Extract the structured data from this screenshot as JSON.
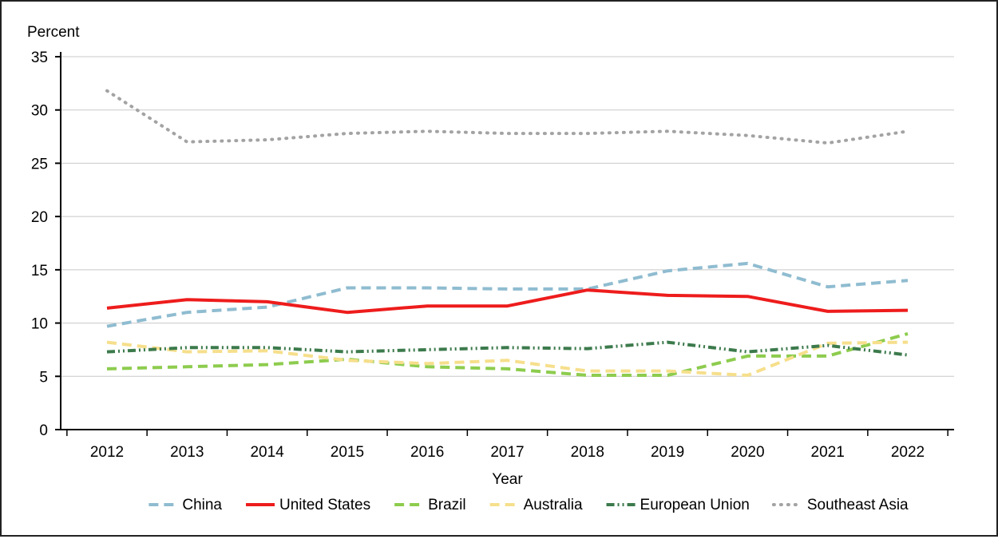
{
  "chart_data": {
    "type": "line",
    "title": "",
    "ylabel": "Percent",
    "xlabel": "Year",
    "ylim": [
      0,
      35
    ],
    "yticks": [
      0,
      5,
      10,
      15,
      20,
      25,
      30,
      35
    ],
    "grid": true,
    "legend_position": "bottom",
    "categories": [
      "2012",
      "2013",
      "2014",
      "2015",
      "2016",
      "2017",
      "2018",
      "2019",
      "2020",
      "2021",
      "2022"
    ],
    "series": [
      {
        "name": "China",
        "color": "#8fbcd0",
        "style": "dashed",
        "values": [
          9.7,
          11.0,
          11.5,
          13.3,
          13.3,
          13.2,
          13.2,
          14.9,
          15.6,
          13.4,
          14.0
        ]
      },
      {
        "name": "United States",
        "color": "#ee1c1c",
        "style": "solid",
        "values": [
          11.4,
          12.2,
          12.0,
          11.0,
          11.6,
          11.6,
          13.1,
          12.6,
          12.5,
          11.1,
          11.2
        ]
      },
      {
        "name": "Brazil",
        "color": "#8dcc4e",
        "style": "dashed",
        "values": [
          5.7,
          5.9,
          6.1,
          6.6,
          5.9,
          5.7,
          5.1,
          5.1,
          6.9,
          6.9,
          9.0
        ]
      },
      {
        "name": "Australia",
        "color": "#f6df8c",
        "style": "dashed",
        "values": [
          8.2,
          7.3,
          7.4,
          6.5,
          6.2,
          6.5,
          5.5,
          5.5,
          5.1,
          8.1,
          8.2
        ]
      },
      {
        "name": "European Union",
        "color": "#3c7a4c",
        "style": "dashdotdot",
        "values": [
          7.3,
          7.7,
          7.7,
          7.3,
          7.5,
          7.7,
          7.6,
          8.2,
          7.3,
          7.9,
          7.0
        ]
      },
      {
        "name": "Southeast Asia",
        "color": "#a3a3a3",
        "style": "dotted",
        "values": [
          31.8,
          27.0,
          27.2,
          27.8,
          28.0,
          27.8,
          27.8,
          28.0,
          27.6,
          26.9,
          28.0
        ]
      }
    ]
  }
}
